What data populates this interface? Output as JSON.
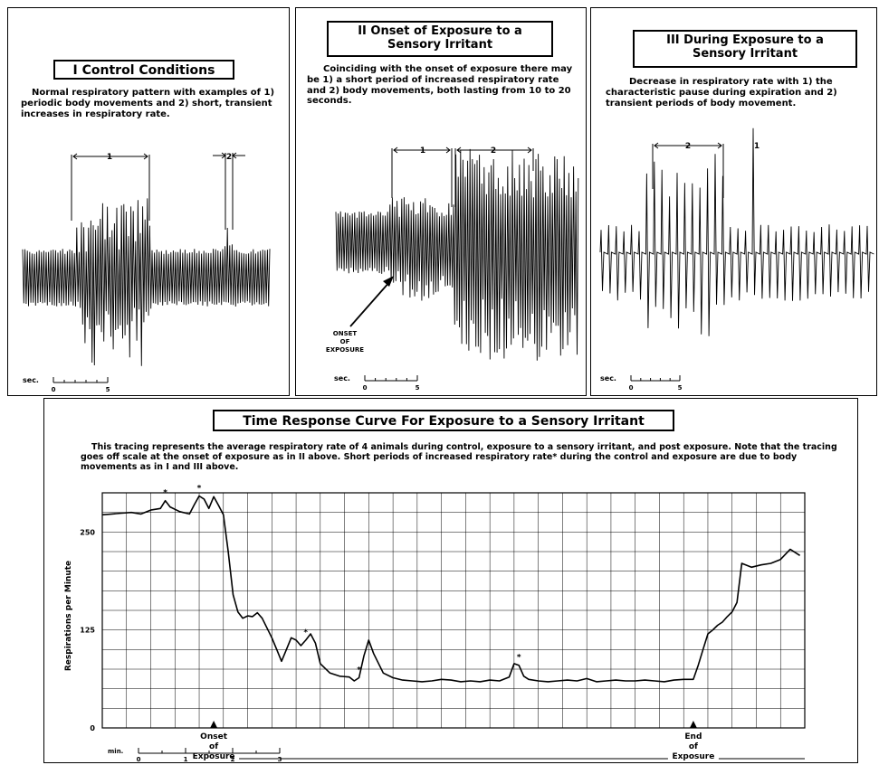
{
  "panel1": {
    "title": "I  Control Conditions",
    "description": "Normal respiratory pattern with examples of 1) periodic body movements and 2) short, transient increases in respiratory rate.",
    "bracket1": "1",
    "bracket2": "2",
    "scale_unit": "sec.",
    "scale_start": "0",
    "scale_end": "5"
  },
  "panel2": {
    "title_line1": "II  Onset of Exposure to a",
    "title_line2": "Sensory Irritant",
    "description": "Coinciding with the onset of exposure there may be 1) a short period of increased respiratory rate and 2) body movements, both lasting from 10 to 20 seconds.",
    "bracket1": "1",
    "bracket2": "2",
    "onset_line1": "ONSET",
    "onset_line2": "OF",
    "onset_line3": "EXPOSURE",
    "scale_unit": "sec.",
    "scale_start": "0",
    "scale_end": "5"
  },
  "panel3": {
    "title_line1": "III  During Exposure to a",
    "title_line2": "Sensory Irritant",
    "description": "Decrease in respiratory rate with 1) the characteristic pause during expiration and 2) transient periods of body movement.",
    "bracket2": "2",
    "marker1": "1",
    "scale_unit": "sec.",
    "scale_start": "0",
    "scale_end": "5"
  },
  "chart_data": {
    "type": "line",
    "title": "Time Response Curve For Exposure to a Sensory Irritant",
    "description": "This tracing represents the average respiratory rate of 4 animals during control, exposure to a sensory irritant, and post exposure. Note that the tracing goes off scale at the onset of exposure as in II above. Short periods of increased respiratory rate* during the control and exposure are due to body movements as in I and III above.",
    "ylabel": "Respirations per Minute",
    "yticks": [
      "0",
      "125",
      "250"
    ],
    "ylim": [
      0,
      300
    ],
    "x_unit": "min.",
    "xticks": [
      "0",
      "1",
      "2",
      "3"
    ],
    "xlim": [
      0,
      14.5
    ],
    "grid": true,
    "asterisk": "*",
    "onset_label_1": "Onset",
    "onset_label_2": "of",
    "onset_label_3": "Exposure",
    "end_label_1": "End",
    "end_label_2": "of",
    "end_label_3": "Exposure",
    "onset_time": 2.3,
    "end_time": 12.2,
    "asterisk_times": [
      1.3,
      2.0,
      4.2,
      5.3,
      8.6
    ],
    "series": [
      {
        "x": [
          0,
          0.2,
          0.4,
          0.6,
          0.8,
          1.0,
          1.2,
          1.3,
          1.4,
          1.6,
          1.8,
          1.9,
          2.0,
          2.1,
          2.2,
          2.3,
          2.4,
          2.5,
          2.6,
          2.7,
          2.8,
          2.9,
          3.0,
          3.1,
          3.2,
          3.3,
          3.5,
          3.6,
          3.7,
          3.8,
          3.9,
          4.0,
          4.1,
          4.2,
          4.3,
          4.4,
          4.5,
          4.7,
          4.9,
          5.1,
          5.2,
          5.3,
          5.4,
          5.5,
          5.6,
          5.8,
          6.0,
          6.2,
          6.4,
          6.6,
          6.8,
          7.0,
          7.2,
          7.4,
          7.6,
          7.8,
          8.0,
          8.2,
          8.4,
          8.5,
          8.6,
          8.7,
          8.8,
          9.0,
          9.2,
          9.4,
          9.6,
          9.8,
          10.0,
          10.2,
          10.4,
          10.6,
          10.8,
          11.0,
          11.2,
          11.4,
          11.6,
          11.8,
          12.0,
          12.2,
          12.3,
          12.4,
          12.5,
          12.6,
          12.7,
          12.8,
          12.9,
          13.0,
          13.1,
          13.2,
          13.4,
          13.6,
          13.8,
          14.0,
          14.2,
          14.4
        ],
        "y": [
          272,
          273,
          274,
          275,
          273,
          278,
          280,
          290,
          282,
          276,
          273,
          285,
          296,
          292,
          280,
          295,
          284,
          272,
          225,
          170,
          148,
          140,
          143,
          142,
          147,
          140,
          115,
          100,
          85,
          100,
          115,
          112,
          105,
          112,
          120,
          108,
          82,
          70,
          66,
          65,
          60,
          64,
          92,
          112,
          95,
          70,
          64,
          61,
          60,
          59,
          60,
          62,
          61,
          59,
          60,
          59,
          61,
          60,
          65,
          82,
          80,
          66,
          62,
          60,
          59,
          60,
          61,
          60,
          63,
          59,
          60,
          61,
          60,
          60,
          61,
          60,
          59,
          61,
          62,
          62,
          80,
          100,
          120,
          125,
          131,
          135,
          142,
          148,
          160,
          210,
          205,
          208,
          210,
          215,
          228,
          220
        ]
      }
    ]
  }
}
